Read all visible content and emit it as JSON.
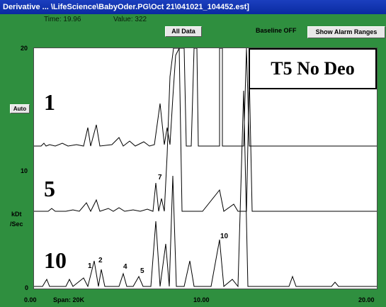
{
  "window": {
    "title": "Derivative ... \\LifeScience\\BabyOder.PG\\Oct 21\\041021_104452.est]"
  },
  "toolbar": {
    "time_label": "Time: 19.96",
    "value_label": "Value: 322",
    "all_data_label": "All Data",
    "baseline_label": "Baseline OFF",
    "alarm_button_label": "Show Alarm Ranges"
  },
  "yaxis": {
    "unit_line1": "kDt",
    "unit_line2": "/Sec",
    "auto_label": "Auto",
    "ticks": [
      "20",
      "10",
      "0"
    ]
  },
  "xaxis": {
    "start": "0.00",
    "span": "Span: 20K",
    "mid": "10.00",
    "end": "20.00"
  },
  "annotations": {
    "sample_label": "T5 No Deo",
    "trace_labels": [
      "1",
      "5",
      "10"
    ],
    "peak_labels": [
      "1",
      "2",
      "4",
      "5",
      "7",
      "10"
    ]
  },
  "colors": {
    "background": "#2f8f3f",
    "plot": "#ffffff",
    "trace": "#000000",
    "titlebar": "#0a2aa0"
  }
}
